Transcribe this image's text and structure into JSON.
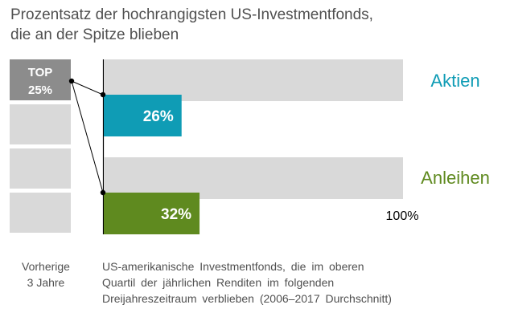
{
  "title": {
    "line1": "Prozentsatz der hochrangigsten US-Investmentfonds,",
    "line2": "die an der Spitze blieben"
  },
  "quartile_stack": {
    "top_label_line1": "TOP",
    "top_label_line2": "25%"
  },
  "footnotes": {
    "left_line1": "Vorherige",
    "left_line2": "3 Jahre",
    "right_line1": "US-amerikanische Investmentfonds, die im oberen",
    "right_line2": "Quartil der jährlichen Renditen im folgenden",
    "right_line3": "Dreijahreszeitraum verblieben (2006–2017 Durchschnitt)"
  },
  "colors": {
    "aktien": "#0f9cb5",
    "anleihen": "#5f8a1f",
    "background_bar": "#d9d9d9",
    "top_box": "#8c8c8c",
    "text": "#505050"
  },
  "chart_data": {
    "type": "bar",
    "orientation": "horizontal",
    "categories": [
      "Aktien",
      "Anleihen"
    ],
    "values": [
      26,
      32
    ],
    "value_labels": [
      "26%",
      "32%"
    ],
    "max": 100,
    "max_label": "100%",
    "xlim": [
      0,
      100
    ]
  }
}
